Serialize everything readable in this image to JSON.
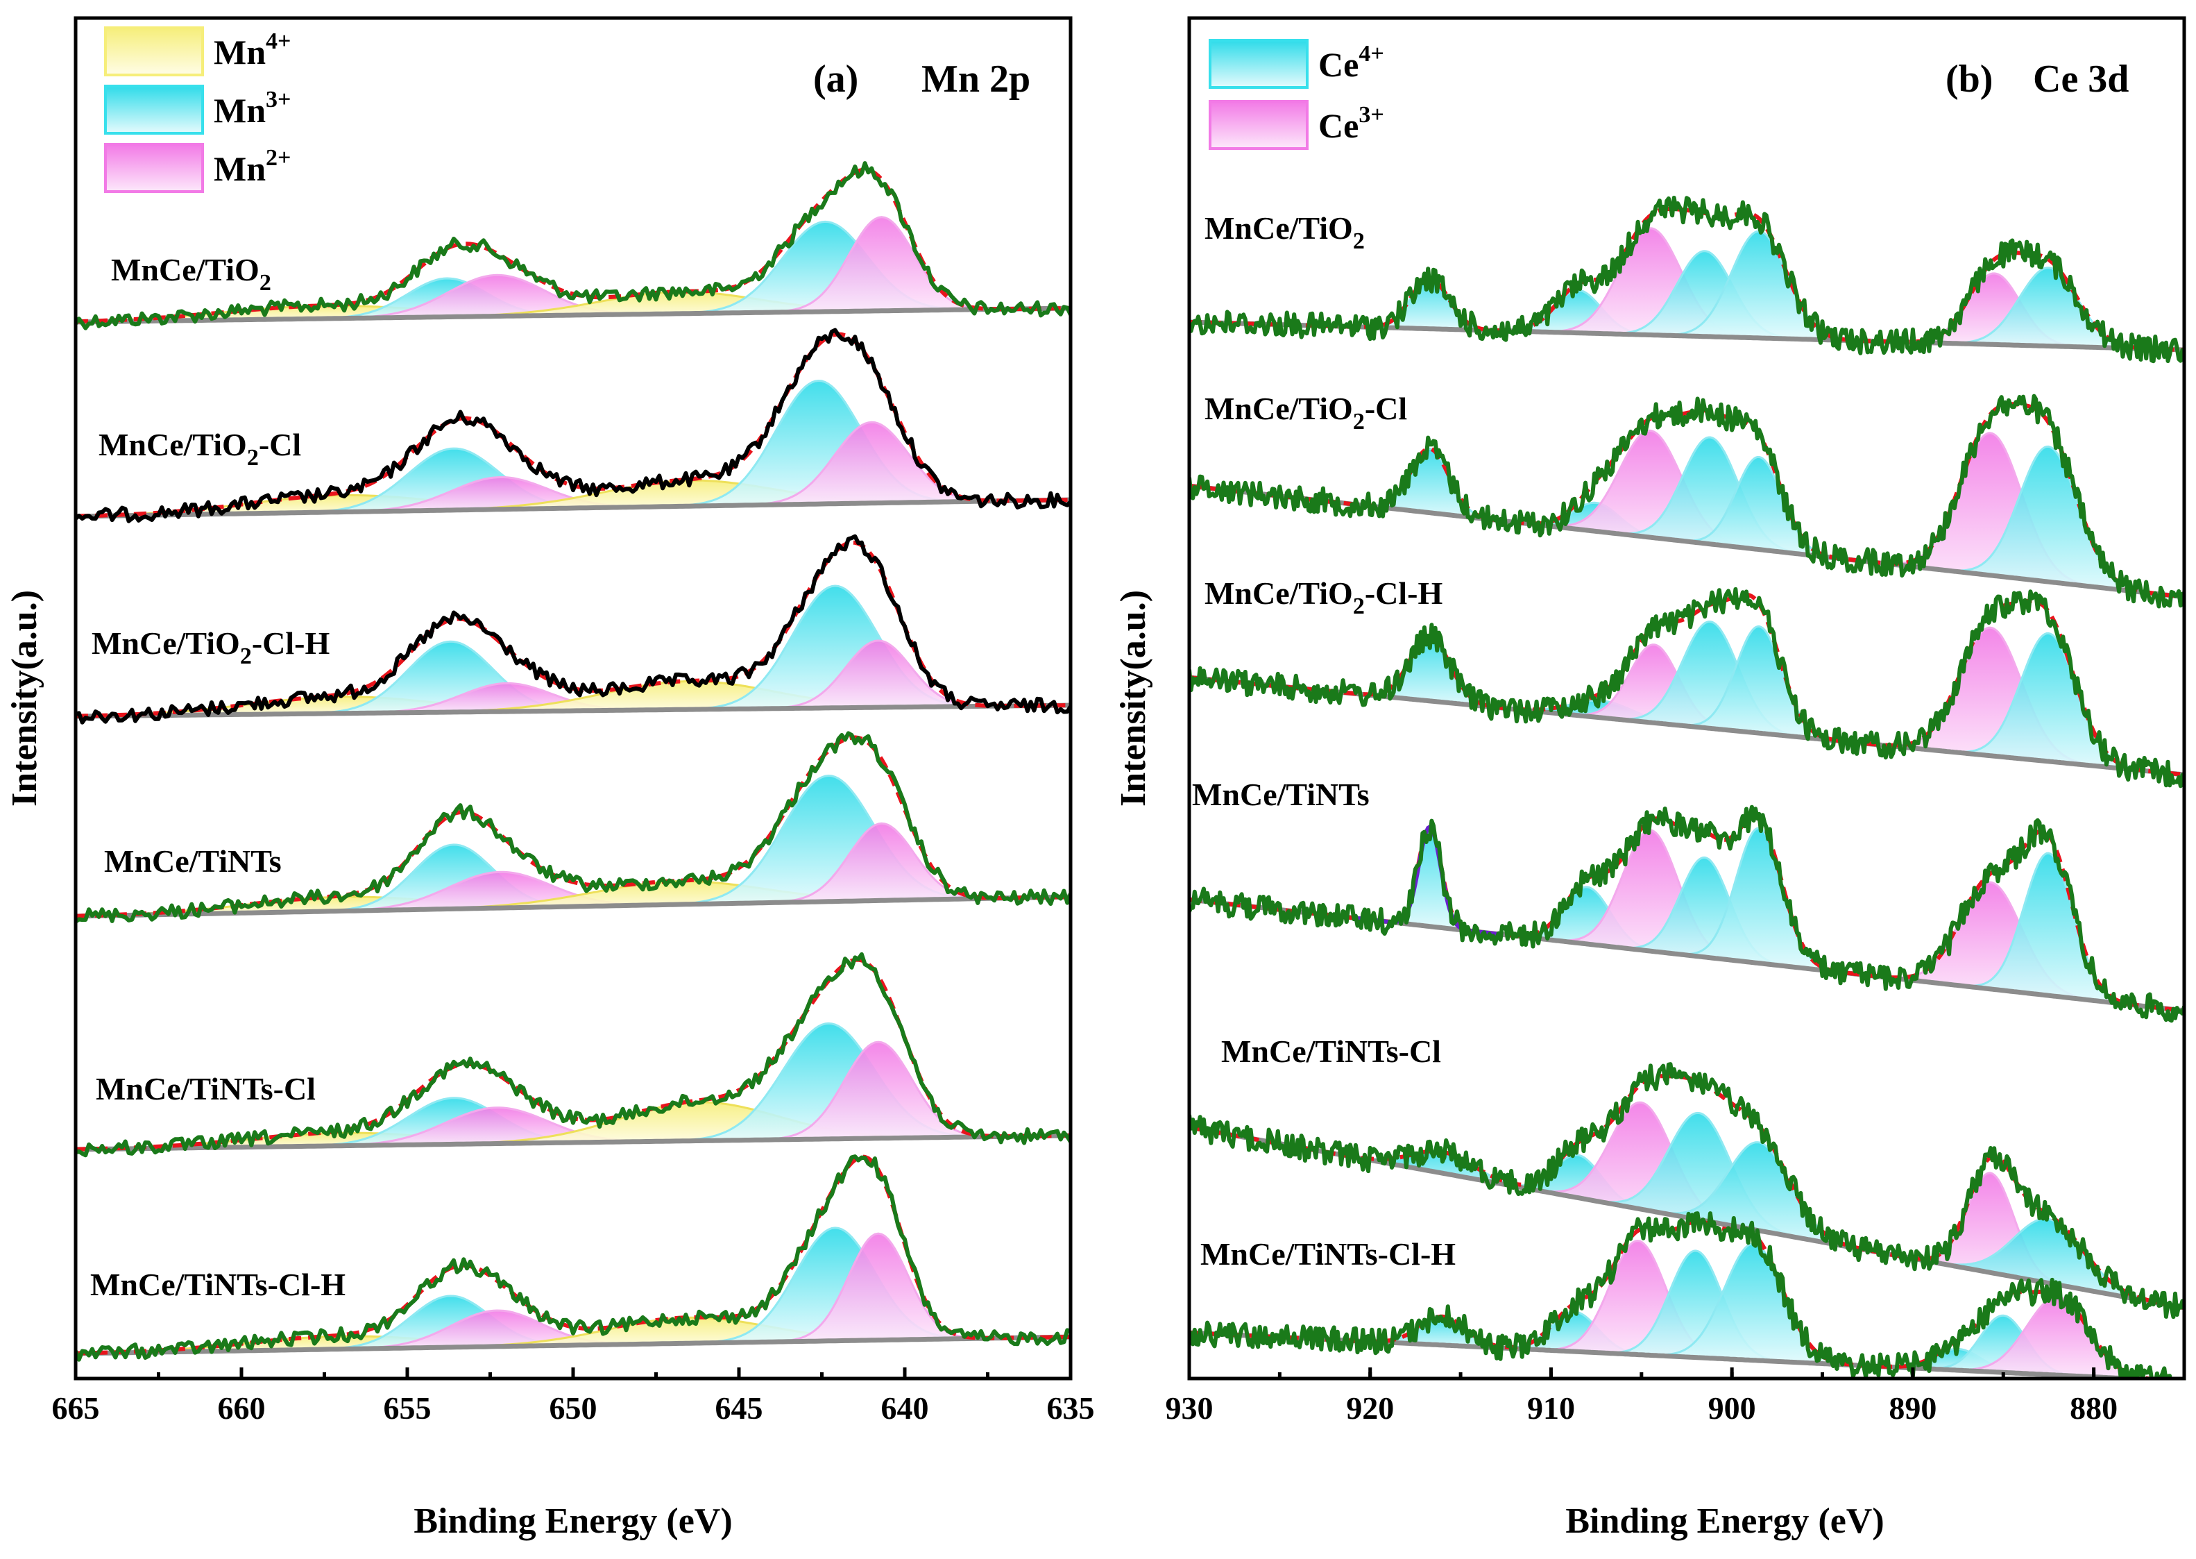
{
  "chart_data": [
    {
      "type": "line",
      "panel": "(a)",
      "title": "Mn 2p",
      "xlabel": "Binding Energy (eV)",
      "ylabel": "Intensity(a.u.)",
      "xlim": [
        665,
        635
      ],
      "x_reversed": true,
      "xticks": [
        665,
        660,
        655,
        650,
        645,
        640,
        635
      ],
      "legend": [
        {
          "label": "Mn",
          "sup": "4+",
          "color": "#f6ee7a"
        },
        {
          "label": "Mn",
          "sup": "3+",
          "color": "#38e0ec"
        },
        {
          "label": "Mn",
          "sup": "2+",
          "color": "#f27ae6"
        }
      ],
      "legend_position": "top-left",
      "samples": [
        {
          "name": "MnCe/TiO",
          "sub": "2",
          "suffix": "",
          "line_color": "#1a7a1a",
          "components": [
            {
              "state": "Mn4+",
              "center": 657.5,
              "height": 0.1,
              "fwhm": 7.0
            },
            {
              "state": "Mn3+",
              "center": 653.8,
              "height": 0.3,
              "fwhm": 2.8
            },
            {
              "state": "Mn2+",
              "center": 652.3,
              "height": 0.32,
              "fwhm": 3.4
            },
            {
              "state": "Mn4+",
              "center": 646.8,
              "height": 0.17,
              "fwhm": 5.6
            },
            {
              "state": "Mn3+",
              "center": 642.4,
              "height": 0.7,
              "fwhm": 3.0
            },
            {
              "state": "Mn2+",
              "center": 640.7,
              "height": 0.73,
              "fwhm": 2.3
            }
          ]
        },
        {
          "name": "MnCe/TiO",
          "sub": "2",
          "suffix": "-Cl",
          "line_color": "#000000",
          "components": [
            {
              "state": "Mn4+",
              "center": 657.0,
              "height": 0.13,
              "fwhm": 6.5
            },
            {
              "state": "Mn3+",
              "center": 653.6,
              "height": 0.48,
              "fwhm": 3.2
            },
            {
              "state": "Mn2+",
              "center": 652.2,
              "height": 0.25,
              "fwhm": 3.4
            },
            {
              "state": "Mn4+",
              "center": 646.5,
              "height": 0.2,
              "fwhm": 6.0
            },
            {
              "state": "Mn3+",
              "center": 642.6,
              "height": 0.96,
              "fwhm": 3.0
            },
            {
              "state": "Mn2+",
              "center": 641.0,
              "height": 0.63,
              "fwhm": 2.6
            }
          ]
        },
        {
          "name": "MnCe/TiO",
          "sub": "2",
          "suffix": "-Cl-H",
          "line_color": "#000000",
          "components": [
            {
              "state": "Mn4+",
              "center": 657.0,
              "height": 0.13,
              "fwhm": 6.5
            },
            {
              "state": "Mn3+",
              "center": 653.7,
              "height": 0.55,
              "fwhm": 3.0
            },
            {
              "state": "Mn2+",
              "center": 652.0,
              "height": 0.22,
              "fwhm": 3.2
            },
            {
              "state": "Mn4+",
              "center": 646.5,
              "height": 0.22,
              "fwhm": 6.0
            },
            {
              "state": "Mn3+",
              "center": 642.1,
              "height": 0.95,
              "fwhm": 3.0
            },
            {
              "state": "Mn2+",
              "center": 640.8,
              "height": 0.52,
              "fwhm": 2.3
            }
          ]
        },
        {
          "name": "MnCe/TiNTs",
          "sub": "",
          "suffix": "",
          "line_color": "#1a7a1a",
          "components": [
            {
              "state": "Mn4+",
              "center": 657.0,
              "height": 0.11,
              "fwhm": 6.5
            },
            {
              "state": "Mn3+",
              "center": 653.6,
              "height": 0.5,
              "fwhm": 2.8
            },
            {
              "state": "Mn2+",
              "center": 652.2,
              "height": 0.28,
              "fwhm": 3.6
            },
            {
              "state": "Mn4+",
              "center": 646.8,
              "height": 0.18,
              "fwhm": 6.0
            },
            {
              "state": "Mn3+",
              "center": 642.3,
              "height": 0.98,
              "fwhm": 3.2
            },
            {
              "state": "Mn2+",
              "center": 640.7,
              "height": 0.6,
              "fwhm": 2.3
            }
          ]
        },
        {
          "name": "MnCe/TiNTs",
          "sub": "",
          "suffix": "-Cl",
          "line_color": "#1a7a1a",
          "components": [
            {
              "state": "Mn4+",
              "center": 657.0,
              "height": 0.1,
              "fwhm": 6.5
            },
            {
              "state": "Mn3+",
              "center": 653.6,
              "height": 0.36,
              "fwhm": 3.2
            },
            {
              "state": "Mn2+",
              "center": 652.3,
              "height": 0.28,
              "fwhm": 3.6
            },
            {
              "state": "Mn4+",
              "center": 646.2,
              "height": 0.3,
              "fwhm": 5.6
            },
            {
              "state": "Mn3+",
              "center": 642.3,
              "height": 0.9,
              "fwhm": 3.2
            },
            {
              "state": "Mn2+",
              "center": 640.8,
              "height": 0.75,
              "fwhm": 2.4
            }
          ]
        },
        {
          "name": "MnCe/TiNTs",
          "sub": "",
          "suffix": "-Cl-H",
          "line_color": "#1a7a1a",
          "components": [
            {
              "state": "Mn4+",
              "center": 657.0,
              "height": 0.1,
              "fwhm": 6.5
            },
            {
              "state": "Mn3+",
              "center": 653.7,
              "height": 0.4,
              "fwhm": 2.8
            },
            {
              "state": "Mn2+",
              "center": 652.3,
              "height": 0.28,
              "fwhm": 3.2
            },
            {
              "state": "Mn4+",
              "center": 646.5,
              "height": 0.2,
              "fwhm": 5.6
            },
            {
              "state": "Mn3+",
              "center": 642.1,
              "height": 0.88,
              "fwhm": 2.8
            },
            {
              "state": "Mn2+",
              "center": 640.8,
              "height": 0.83,
              "fwhm": 2.1
            }
          ]
        }
      ]
    },
    {
      "type": "line",
      "panel": "(b)",
      "title": "Ce 3d",
      "xlabel": "Binding Energy (eV)",
      "ylabel": "Intensity(a.u.)",
      "xlim": [
        930,
        875
      ],
      "x_reversed": true,
      "xticks": [
        930,
        920,
        910,
        900,
        890,
        880
      ],
      "legend": [
        {
          "label": "Ce",
          "sup": "4+",
          "color": "#38e0ec"
        },
        {
          "label": "Ce",
          "sup": "3+",
          "color": "#f27ae6"
        }
      ],
      "legend_position": "top-left",
      "samples": [
        {
          "name": "MnCe/TiO",
          "sub": "2",
          "suffix": "",
          "line_color": "#1a7a1a",
          "components": [
            {
              "state": "Ce4+",
              "center": 916.7,
              "height": 0.35,
              "fwhm": 2.5
            },
            {
              "state": "Ce4+",
              "center": 908.5,
              "height": 0.3,
              "fwhm": 3.0
            },
            {
              "state": "Ce3+",
              "center": 904.5,
              "height": 0.75,
              "fwhm": 4.0
            },
            {
              "state": "Ce4+",
              "center": 901.5,
              "height": 0.6,
              "fwhm": 3.6
            },
            {
              "state": "Ce4+",
              "center": 898.5,
              "height": 0.75,
              "fwhm": 3.6
            },
            {
              "state": "Ce3+",
              "center": 885.5,
              "height": 0.5,
              "fwhm": 3.4
            },
            {
              "state": "Ce4+",
              "center": 882.5,
              "height": 0.55,
              "fwhm": 3.8
            }
          ]
        },
        {
          "name": "MnCe/TiO",
          "sub": "2",
          "suffix": "-Cl",
          "line_color": "#1a7a1a",
          "components": [
            {
              "state": "Ce4+",
              "center": 916.7,
              "height": 0.45,
              "fwhm": 2.5
            },
            {
              "state": "Ce4+",
              "center": 907.5,
              "height": 0.2,
              "fwhm": 3.0
            },
            {
              "state": "Ce3+",
              "center": 904.5,
              "height": 0.75,
              "fwhm": 4.0
            },
            {
              "state": "Ce4+",
              "center": 901.2,
              "height": 0.75,
              "fwhm": 3.6
            },
            {
              "state": "Ce4+",
              "center": 898.5,
              "height": 0.65,
              "fwhm": 3.0
            },
            {
              "state": "Ce3+",
              "center": 885.7,
              "height": 1.0,
              "fwhm": 4.0
            },
            {
              "state": "Ce4+",
              "center": 882.5,
              "height": 0.95,
              "fwhm": 3.8
            }
          ]
        },
        {
          "name": "MnCe/TiO",
          "sub": "2",
          "suffix": "-Cl-H",
          "line_color": "#1a7a1a",
          "components": [
            {
              "state": "Ce4+",
              "center": 916.7,
              "height": 0.45,
              "fwhm": 2.6
            },
            {
              "state": "Ce4+",
              "center": 907.2,
              "height": 0.12,
              "fwhm": 4.0
            },
            {
              "state": "Ce3+",
              "center": 904.3,
              "height": 0.55,
              "fwhm": 3.2
            },
            {
              "state": "Ce4+",
              "center": 901.2,
              "height": 0.75,
              "fwhm": 3.6
            },
            {
              "state": "Ce4+",
              "center": 898.5,
              "height": 0.75,
              "fwhm": 3.0
            },
            {
              "state": "Ce3+",
              "center": 885.7,
              "height": 0.9,
              "fwhm": 4.0
            },
            {
              "state": "Ce4+",
              "center": 882.5,
              "height": 0.9,
              "fwhm": 3.6
            }
          ]
        },
        {
          "name": "MnCe/TiNTs",
          "sub": "",
          "suffix": "",
          "line_color": "#1a7a1a",
          "has_reference_peak": true,
          "components": [
            {
              "state": "Ce4+",
              "center": 916.7,
              "height": 0.7,
              "fwhm": 1.5
            },
            {
              "state": "Ce4+",
              "center": 908.0,
              "height": 0.4,
              "fwhm": 3.0
            },
            {
              "state": "Ce3+",
              "center": 904.5,
              "height": 0.85,
              "fwhm": 3.6
            },
            {
              "state": "Ce4+",
              "center": 901.5,
              "height": 0.7,
              "fwhm": 3.2
            },
            {
              "state": "Ce4+",
              "center": 898.5,
              "height": 0.95,
              "fwhm": 3.0
            },
            {
              "state": "Ce3+",
              "center": 885.7,
              "height": 0.75,
              "fwhm": 4.0
            },
            {
              "state": "Ce4+",
              "center": 882.5,
              "height": 1.0,
              "fwhm": 3.2
            }
          ]
        },
        {
          "name": "MnCe/TiNTs",
          "sub": "",
          "suffix": "-Cl",
          "line_color": "#1a7a1a",
          "components": [
            {
              "state": "Ce4+",
              "center": 916.0,
              "height": 0.15,
              "fwhm": 4.0
            },
            {
              "state": "Ce4+",
              "center": 908.5,
              "height": 0.3,
              "fwhm": 3.0
            },
            {
              "state": "Ce3+",
              "center": 905.0,
              "height": 0.75,
              "fwhm": 4.0
            },
            {
              "state": "Ce4+",
              "center": 901.8,
              "height": 0.75,
              "fwhm": 4.0
            },
            {
              "state": "Ce4+",
              "center": 898.5,
              "height": 0.62,
              "fwhm": 4.0
            },
            {
              "state": "Ce3+",
              "center": 885.7,
              "height": 0.7,
              "fwhm": 3.0
            },
            {
              "state": "Ce4+",
              "center": 882.5,
              "height": 0.45,
              "fwhm": 4.5
            }
          ]
        },
        {
          "name": "MnCe/TiNTs",
          "sub": "",
          "suffix": "-Cl-H",
          "line_color": "#1a7a1a",
          "components": [
            {
              "state": "Ce4+",
              "center": 916.0,
              "height": 0.2,
              "fwhm": 3.0
            },
            {
              "state": "Ce4+",
              "center": 908.7,
              "height": 0.28,
              "fwhm": 3.0
            },
            {
              "state": "Ce3+",
              "center": 905.2,
              "height": 0.8,
              "fwhm": 3.6
            },
            {
              "state": "Ce4+",
              "center": 902.0,
              "height": 0.75,
              "fwhm": 3.4
            },
            {
              "state": "Ce4+",
              "center": 898.8,
              "height": 0.82,
              "fwhm": 3.8
            },
            {
              "state": "Ce4+",
              "center": 887.5,
              "height": 0.15,
              "fwhm": 3.0
            },
            {
              "state": "Ce4+",
              "center": 885.0,
              "height": 0.4,
              "fwhm": 3.0
            },
            {
              "state": "Ce3+",
              "center": 882.0,
              "height": 0.55,
              "fwhm": 4.0
            }
          ]
        }
      ]
    }
  ]
}
